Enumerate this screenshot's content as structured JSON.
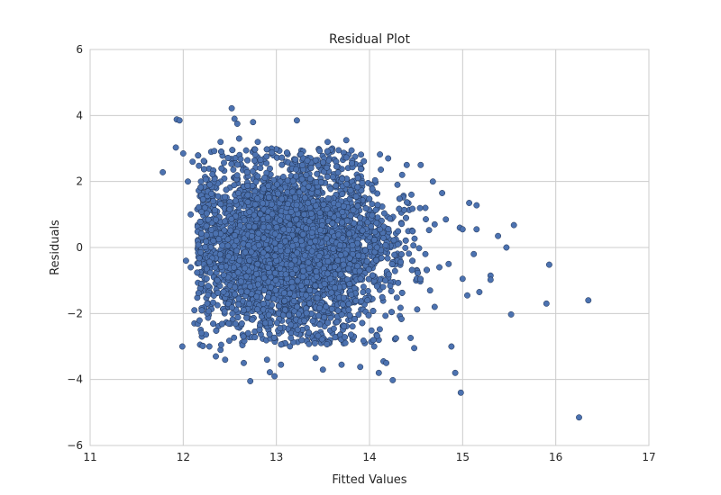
{
  "chart_data": {
    "type": "scatter",
    "title": "Residual Plot",
    "xlabel": "Fitted Values",
    "ylabel": "Residuals",
    "xlim": [
      11,
      17
    ],
    "ylim": [
      -6,
      6
    ],
    "x_ticks": [
      "11",
      "12",
      "13",
      "14",
      "15",
      "16",
      "17"
    ],
    "y_ticks": [
      "−6",
      "−4",
      "−2",
      "0",
      "2",
      "4",
      "6"
    ],
    "grid": true,
    "point_color": "#4c72b0",
    "series": [
      {
        "points": [
          [
            11.78,
            2.28
          ],
          [
            11.93,
            3.88
          ],
          [
            11.96,
            3.85
          ],
          [
            11.92,
            3.03
          ],
          [
            12.0,
            2.85
          ],
          [
            11.99,
            -3.0
          ],
          [
            12.1,
            2.6
          ],
          [
            12.05,
            2.0
          ],
          [
            12.08,
            1.0
          ],
          [
            12.03,
            -0.4
          ],
          [
            12.08,
            -0.6
          ],
          [
            12.12,
            -1.9
          ],
          [
            12.12,
            -2.3
          ],
          [
            12.2,
            -2.7
          ],
          [
            12.28,
            -3.0
          ],
          [
            12.35,
            -3.3
          ],
          [
            12.4,
            -3.1
          ],
          [
            12.55,
            3.9
          ],
          [
            12.52,
            4.22
          ],
          [
            12.58,
            3.75
          ],
          [
            12.75,
            3.8
          ],
          [
            13.22,
            3.85
          ],
          [
            12.65,
            -3.5
          ],
          [
            12.72,
            -4.05
          ],
          [
            12.9,
            -3.4
          ],
          [
            12.93,
            -3.78
          ],
          [
            12.98,
            -3.9
          ],
          [
            13.05,
            -3.55
          ],
          [
            13.42,
            -3.35
          ],
          [
            13.5,
            -3.7
          ],
          [
            13.7,
            -3.55
          ],
          [
            13.9,
            -3.62
          ],
          [
            14.1,
            -3.8
          ],
          [
            14.15,
            -3.45
          ],
          [
            14.18,
            -3.5
          ],
          [
            14.25,
            -4.02
          ],
          [
            14.48,
            -3.05
          ],
          [
            14.4,
            2.5
          ],
          [
            14.55,
            2.5
          ],
          [
            14.68,
            2.0
          ],
          [
            14.78,
            1.65
          ],
          [
            14.82,
            0.85
          ],
          [
            14.85,
            -0.5
          ],
          [
            14.88,
            -3.0
          ],
          [
            14.92,
            -3.8
          ],
          [
            14.97,
            0.6
          ],
          [
            15.0,
            0.55
          ],
          [
            15.0,
            -0.95
          ],
          [
            15.05,
            -1.45
          ],
          [
            15.07,
            1.35
          ],
          [
            15.12,
            -0.2
          ],
          [
            15.15,
            1.28
          ],
          [
            15.15,
            0.55
          ],
          [
            15.18,
            -1.35
          ],
          [
            15.3,
            -0.85
          ],
          [
            15.3,
            -0.98
          ],
          [
            15.38,
            0.35
          ],
          [
            15.47,
            0.0
          ],
          [
            15.52,
            -2.03
          ],
          [
            15.55,
            0.68
          ],
          [
            15.9,
            -1.7
          ],
          [
            15.93,
            -0.52
          ],
          [
            16.25,
            -5.15
          ],
          [
            16.35,
            -1.6
          ],
          [
            14.98,
            -4.4
          ],
          [
            14.5,
            -1.0
          ],
          [
            14.6,
            -0.2
          ],
          [
            14.7,
            0.7
          ],
          [
            14.75,
            -0.6
          ],
          [
            14.65,
            -1.3
          ],
          [
            14.7,
            -1.8
          ],
          [
            14.6,
            1.2
          ],
          [
            14.45,
            1.6
          ],
          [
            14.35,
            2.2
          ],
          [
            14.3,
            1.9
          ],
          [
            14.2,
            2.7
          ],
          [
            14.1,
            -2.8
          ],
          [
            14.05,
            -3.0
          ],
          [
            13.95,
            -2.9
          ],
          [
            12.45,
            -3.4
          ],
          [
            12.3,
            2.9
          ],
          [
            12.4,
            3.2
          ],
          [
            12.6,
            3.3
          ],
          [
            12.8,
            3.2
          ],
          [
            13.55,
            3.2
          ],
          [
            13.75,
            3.25
          ],
          [
            13.6,
            3.0
          ]
        ]
      }
    ]
  }
}
